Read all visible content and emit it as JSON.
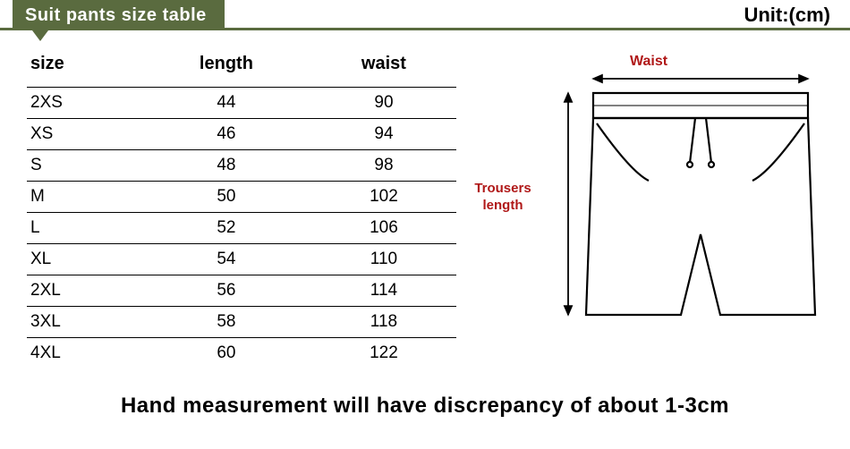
{
  "header": {
    "title": "Suit pants size table",
    "unit": "Unit:(cm)"
  },
  "table": {
    "columns": [
      "size",
      "length",
      "waist"
    ],
    "rows": [
      [
        "2XS",
        "44",
        "90"
      ],
      [
        "XS",
        "46",
        "94"
      ],
      [
        "S",
        "48",
        "98"
      ],
      [
        "M",
        "50",
        "102"
      ],
      [
        "L",
        "52",
        "106"
      ],
      [
        "XL",
        "54",
        "110"
      ],
      [
        "2XL",
        "56",
        "114"
      ],
      [
        "3XL",
        "58",
        "118"
      ],
      [
        "4XL",
        "60",
        "122"
      ]
    ]
  },
  "diagram": {
    "waist_label": "Waist",
    "length_label_line1": "Trousers",
    "length_label_line2": "length",
    "stroke_color": "#000000",
    "arrow_color": "#000000",
    "label_color": "#b01818",
    "bg": "#ffffff"
  },
  "footer": {
    "note": "Hand measurement will have discrepancy of about 1-3cm"
  },
  "colors": {
    "tab_bg": "#5a6b3f",
    "tab_text": "#ffffff",
    "line": "#000000"
  }
}
